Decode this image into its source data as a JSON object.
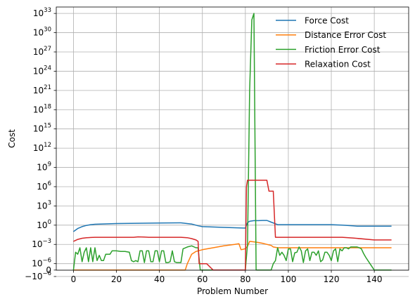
{
  "chart_data": {
    "type": "line",
    "title": "",
    "xlabel": "Problem Number",
    "ylabel": "Cost",
    "xlim": [
      -8,
      156
    ],
    "ylim": [
      -2e-08,
      1e+34
    ],
    "yscale": "symlog",
    "ylinthresh": 1e-06,
    "grid": true,
    "legend_position": "top-right",
    "x_ticks": [
      {
        "value": 0,
        "label": "0"
      },
      {
        "value": 20,
        "label": "20"
      },
      {
        "value": 40,
        "label": "40"
      },
      {
        "value": 60,
        "label": "60"
      },
      {
        "value": 80,
        "label": "80"
      },
      {
        "value": 100,
        "label": "100"
      },
      {
        "value": 120,
        "label": "120"
      },
      {
        "value": 140,
        "label": "140"
      }
    ],
    "y_ticks": [
      {
        "value": -1e-06,
        "base": "−10",
        "exp": "−6"
      },
      {
        "value": 0,
        "base": "0",
        "exp": ""
      },
      {
        "value": 1e-06,
        "base": "10",
        "exp": "−6"
      },
      {
        "value": 0.001,
        "base": "10",
        "exp": "−3"
      },
      {
        "value": 1,
        "base": "10",
        "exp": "0"
      },
      {
        "value": 1000.0,
        "base": "10",
        "exp": "3"
      },
      {
        "value": 1000000.0,
        "base": "10",
        "exp": "6"
      },
      {
        "value": 1000000000.0,
        "base": "10",
        "exp": "9"
      },
      {
        "value": 1000000000000.0,
        "base": "10",
        "exp": "12"
      },
      {
        "value": 1000000000000000.0,
        "base": "10",
        "exp": "15"
      },
      {
        "value": 1e+18,
        "base": "10",
        "exp": "18"
      },
      {
        "value": 1e+21,
        "base": "10",
        "exp": "21"
      },
      {
        "value": 1e+24,
        "base": "10",
        "exp": "24"
      },
      {
        "value": 1e+27,
        "base": "10",
        "exp": "27"
      },
      {
        "value": 1e+30,
        "base": "10",
        "exp": "30"
      },
      {
        "value": 1e+33,
        "base": "10",
        "exp": "33"
      }
    ],
    "series": [
      {
        "name": "Force Cost",
        "color": "#1f77b4",
        "x": [
          0,
          2,
          4,
          6,
          8,
          10,
          20,
          30,
          40,
          50,
          55,
          58,
          60,
          70,
          80,
          81,
          82,
          84,
          86,
          88,
          90,
          92,
          95,
          100,
          110,
          120,
          125,
          130,
          132,
          140,
          148
        ],
        "y": [
          0.1,
          0.3,
          0.6,
          0.9,
          1.2,
          1.4,
          1.8,
          2.0,
          2.2,
          2.3,
          1.5,
          0.8,
          0.6,
          0.45,
          0.35,
          2.5,
          4,
          5,
          5,
          5.5,
          5.5,
          3,
          1.2,
          1.2,
          1.2,
          1.2,
          1.0,
          0.8,
          0.7,
          0.7,
          0.7
        ]
      },
      {
        "name": "Distance Error Cost",
        "color": "#ff7f0e",
        "x": [
          0,
          10,
          20,
          30,
          40,
          50,
          52,
          53,
          55,
          57,
          60,
          65,
          70,
          75,
          77,
          78,
          79,
          80,
          81,
          82,
          84,
          86,
          88,
          90,
          92,
          93,
          95,
          100,
          110,
          120,
          130,
          140,
          148
        ],
        "y": [
          0,
          0,
          0,
          0,
          0,
          0,
          0,
          1e-06,
          3e-05,
          8e-05,
          0.00015,
          0.0003,
          0.0006,
          0.001,
          0.0013,
          0.00015,
          0.00018,
          0.00022,
          0.0005,
          0.003,
          0.0025,
          0.002,
          0.0015,
          0.001,
          0.0007,
          0.0004,
          0.0003,
          0.0003,
          0.0003,
          0.0003,
          0.0003,
          0.0003,
          0.0003
        ]
      },
      {
        "name": "Friction Error Cost",
        "color": "#2ca02c",
        "x": [
          0,
          1,
          2,
          3,
          4,
          5,
          6,
          7,
          8,
          9,
          10,
          11,
          12,
          13,
          14,
          15,
          16,
          17,
          18,
          20,
          22,
          24,
          26,
          27,
          28,
          29,
          30,
          31,
          32,
          33,
          34,
          35,
          36,
          37,
          38,
          39,
          40,
          41,
          42,
          43,
          44,
          45,
          46,
          47,
          48,
          49,
          50,
          51,
          53,
          55,
          57,
          58,
          59,
          60,
          63,
          66,
          70,
          74,
          78,
          80,
          81,
          82,
          83,
          84,
          85,
          86,
          88,
          90,
          92,
          93,
          94,
          95,
          96,
          97,
          98,
          99,
          100,
          101,
          102,
          103,
          104,
          105,
          106,
          107,
          108,
          109,
          110,
          111,
          112,
          113,
          114,
          115,
          116,
          117,
          118,
          119,
          120,
          121,
          122,
          123,
          124,
          125,
          126,
          127,
          128,
          129,
          130,
          131,
          132,
          133,
          134,
          135,
          136,
          138,
          140,
          142,
          144,
          146,
          148
        ],
        "y": [
          0,
          6e-05,
          3e-05,
          0.0003,
          2e-06,
          6e-05,
          0.0003,
          2e-06,
          0.0003,
          2e-06,
          0.0003,
          3e-06,
          2e-05,
          3e-06,
          3e-06,
          3e-05,
          3e-05,
          3e-05,
          0.0001,
          0.0001,
          8e-05,
          8e-05,
          6e-05,
          3e-06,
          2e-06,
          3e-06,
          2e-06,
          0.0001,
          0.0001,
          1.5e-06,
          0.0001,
          0.0001,
          2e-06,
          2e-06,
          0.0001,
          0.0001,
          2e-06,
          0.0001,
          0.0001,
          1.5e-06,
          1.5e-06,
          2e-06,
          0.0001,
          2e-06,
          1.5e-06,
          1.5e-06,
          1.5e-06,
          0.0002,
          0.0004,
          0.0006,
          0.0003,
          0.0003,
          0,
          0,
          0,
          0,
          0,
          0,
          0,
          0,
          0.001,
          1e+21,
          1e+32,
          1e+33,
          0,
          0,
          0,
          0,
          0,
          1e-06,
          3e-06,
          0.0003,
          2e-05,
          6e-05,
          2e-05,
          3e-06,
          0.0002,
          0.0002,
          2e-06,
          5e-05,
          6e-05,
          0.0004,
          0.0001,
          1.5e-06,
          0.0001,
          0.0002,
          3e-06,
          6e-05,
          6e-05,
          2e-05,
          0.0001,
          2e-06,
          4e-06,
          6e-05,
          6e-05,
          2e-05,
          3e-06,
          0.0001,
          0.0002,
          2e-06,
          0.0002,
          0.0001,
          0.0003,
          0.0003,
          0.0002,
          0.0004,
          0.0004,
          0.0004,
          0.0004,
          0.0003,
          0.0002,
          4e-05,
          1e-05,
          1e-06,
          0,
          0,
          0,
          0,
          0
        ]
      },
      {
        "name": "Relaxation Cost",
        "color": "#d62728",
        "x": [
          0,
          2,
          4,
          6,
          8,
          10,
          15,
          20,
          25,
          28,
          30,
          33,
          35,
          40,
          45,
          50,
          53,
          55,
          57,
          58,
          58.5,
          59,
          62,
          65,
          70,
          75,
          79,
          80,
          80.5,
          81,
          82,
          85,
          90,
          91,
          93,
          94,
          95,
          100,
          110,
          120,
          125,
          130,
          140,
          148
        ],
        "y": [
          0.003,
          0.006,
          0.009,
          0.011,
          0.012,
          0.013,
          0.013,
          0.013,
          0.013,
          0.013,
          0.015,
          0.014,
          0.013,
          0.013,
          0.013,
          0.013,
          0.011,
          0.008,
          0.005,
          0.003,
          1e-06,
          1e-06,
          1e-06,
          0,
          0,
          0,
          0,
          0,
          1000000.0,
          10000000.0,
          10000000.0,
          10000000.0,
          10000000.0,
          200000.0,
          200000.0,
          0.013,
          0.013,
          0.013,
          0.013,
          0.013,
          0.013,
          0.01,
          0.005,
          0.005
        ]
      }
    ]
  }
}
